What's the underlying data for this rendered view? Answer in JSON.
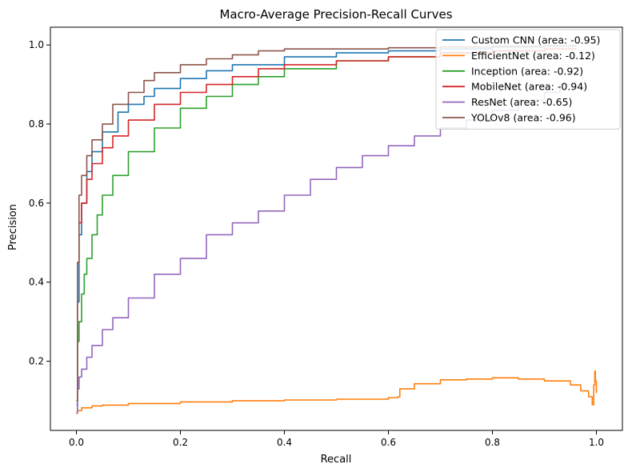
{
  "chart_data": {
    "type": "line",
    "title": "Macro-Average Precision-Recall Curves",
    "xlabel": "Recall",
    "ylabel": "Precision",
    "xlim": [
      -0.05,
      1.05
    ],
    "ylim": [
      0.025,
      1.045
    ],
    "xticks": [
      0.0,
      0.2,
      0.4,
      0.6,
      0.8,
      1.0
    ],
    "xtick_labels": [
      "0.0",
      "0.2",
      "0.4",
      "0.6",
      "0.8",
      "1.0"
    ],
    "yticks": [
      0.2,
      0.4,
      0.6,
      0.8,
      1.0
    ],
    "ytick_labels": [
      "0.2",
      "0.4",
      "0.6",
      "0.8",
      "1.0"
    ],
    "grid": false,
    "legend_position": "top-right",
    "series": [
      {
        "name": "Custom CNN (area: -0.95)",
        "color": "#1f77b4",
        "points": [
          [
            0.0,
            0.09
          ],
          [
            0.002,
            0.35
          ],
          [
            0.005,
            0.52
          ],
          [
            0.01,
            0.6
          ],
          [
            0.02,
            0.68
          ],
          [
            0.03,
            0.73
          ],
          [
            0.05,
            0.78
          ],
          [
            0.08,
            0.83
          ],
          [
            0.1,
            0.85
          ],
          [
            0.13,
            0.87
          ],
          [
            0.15,
            0.89
          ],
          [
            0.2,
            0.915
          ],
          [
            0.25,
            0.935
          ],
          [
            0.3,
            0.95
          ],
          [
            0.4,
            0.97
          ],
          [
            0.5,
            0.98
          ],
          [
            0.6,
            0.985
          ],
          [
            0.7,
            0.99
          ],
          [
            0.8,
            0.995
          ],
          [
            0.9,
            0.997
          ],
          [
            0.96,
            0.998
          ]
        ]
      },
      {
        "name": "EfficientNet (area: -0.12)",
        "color": "#ff7f0e",
        "points": [
          [
            0.0,
            0.068
          ],
          [
            0.002,
            0.075
          ],
          [
            0.01,
            0.082
          ],
          [
            0.03,
            0.087
          ],
          [
            0.05,
            0.089
          ],
          [
            0.1,
            0.093
          ],
          [
            0.2,
            0.097
          ],
          [
            0.3,
            0.1
          ],
          [
            0.4,
            0.102
          ],
          [
            0.5,
            0.104
          ],
          [
            0.6,
            0.108
          ],
          [
            0.618,
            0.11
          ],
          [
            0.622,
            0.13
          ],
          [
            0.65,
            0.143
          ],
          [
            0.7,
            0.153
          ],
          [
            0.75,
            0.155
          ],
          [
            0.8,
            0.158
          ],
          [
            0.85,
            0.155
          ],
          [
            0.9,
            0.15
          ],
          [
            0.95,
            0.14
          ],
          [
            0.97,
            0.125
          ],
          [
            0.985,
            0.11
          ],
          [
            0.992,
            0.09
          ],
          [
            0.995,
            0.14
          ],
          [
            0.997,
            0.175
          ],
          [
            0.998,
            0.15
          ],
          [
            1.0,
            0.12
          ]
        ]
      },
      {
        "name": "Inception (area: -0.92)",
        "color": "#2ca02c",
        "points": [
          [
            0.0,
            0.07
          ],
          [
            0.002,
            0.25
          ],
          [
            0.005,
            0.3
          ],
          [
            0.01,
            0.37
          ],
          [
            0.015,
            0.42
          ],
          [
            0.02,
            0.46
          ],
          [
            0.03,
            0.52
          ],
          [
            0.04,
            0.57
          ],
          [
            0.05,
            0.62
          ],
          [
            0.07,
            0.67
          ],
          [
            0.1,
            0.73
          ],
          [
            0.15,
            0.79
          ],
          [
            0.2,
            0.84
          ],
          [
            0.25,
            0.87
          ],
          [
            0.3,
            0.9
          ],
          [
            0.35,
            0.92
          ],
          [
            0.4,
            0.94
          ],
          [
            0.5,
            0.96
          ],
          [
            0.6,
            0.97
          ],
          [
            0.7,
            0.98
          ],
          [
            0.8,
            0.985
          ],
          [
            0.9,
            0.99
          ],
          [
            0.96,
            0.993
          ]
        ]
      },
      {
        "name": "MobileNet (area: -0.94)",
        "color": "#d62728",
        "points": [
          [
            0.0,
            0.1
          ],
          [
            0.002,
            0.45
          ],
          [
            0.005,
            0.55
          ],
          [
            0.01,
            0.6
          ],
          [
            0.02,
            0.66
          ],
          [
            0.03,
            0.7
          ],
          [
            0.05,
            0.74
          ],
          [
            0.07,
            0.77
          ],
          [
            0.1,
            0.81
          ],
          [
            0.15,
            0.85
          ],
          [
            0.2,
            0.88
          ],
          [
            0.25,
            0.9
          ],
          [
            0.3,
            0.92
          ],
          [
            0.35,
            0.94
          ],
          [
            0.4,
            0.95
          ],
          [
            0.5,
            0.96
          ],
          [
            0.6,
            0.97
          ],
          [
            0.7,
            0.98
          ],
          [
            0.8,
            0.985
          ],
          [
            0.9,
            0.99
          ],
          [
            0.96,
            0.992
          ]
        ]
      },
      {
        "name": "ResNet (area: -0.65)",
        "color": "#9467bd",
        "points": [
          [
            0.0,
            0.07
          ],
          [
            0.002,
            0.13
          ],
          [
            0.005,
            0.16
          ],
          [
            0.01,
            0.18
          ],
          [
            0.02,
            0.21
          ],
          [
            0.03,
            0.24
          ],
          [
            0.05,
            0.28
          ],
          [
            0.07,
            0.31
          ],
          [
            0.1,
            0.36
          ],
          [
            0.15,
            0.42
          ],
          [
            0.2,
            0.46
          ],
          [
            0.25,
            0.52
          ],
          [
            0.3,
            0.55
          ],
          [
            0.35,
            0.58
          ],
          [
            0.4,
            0.62
          ],
          [
            0.45,
            0.66
          ],
          [
            0.5,
            0.69
          ],
          [
            0.55,
            0.72
          ],
          [
            0.6,
            0.745
          ],
          [
            0.65,
            0.77
          ],
          [
            0.7,
            0.79
          ],
          [
            0.75,
            0.81
          ],
          [
            0.8,
            0.835
          ],
          [
            0.85,
            0.86
          ],
          [
            0.9,
            0.88
          ],
          [
            0.93,
            0.9
          ],
          [
            0.96,
            0.91
          ]
        ]
      },
      {
        "name": "YOLOv8 (area: -0.96)",
        "color": "#8c564b",
        "points": [
          [
            0.0,
            0.1
          ],
          [
            0.002,
            0.45
          ],
          [
            0.005,
            0.62
          ],
          [
            0.01,
            0.67
          ],
          [
            0.02,
            0.72
          ],
          [
            0.03,
            0.76
          ],
          [
            0.05,
            0.8
          ],
          [
            0.07,
            0.85
          ],
          [
            0.1,
            0.88
          ],
          [
            0.13,
            0.91
          ],
          [
            0.15,
            0.93
          ],
          [
            0.2,
            0.95
          ],
          [
            0.25,
            0.965
          ],
          [
            0.3,
            0.975
          ],
          [
            0.35,
            0.985
          ],
          [
            0.4,
            0.99
          ],
          [
            0.5,
            0.99
          ],
          [
            0.6,
            0.993
          ],
          [
            0.7,
            0.995
          ],
          [
            0.8,
            0.997
          ],
          [
            0.9,
            0.998
          ],
          [
            0.96,
            0.999
          ]
        ]
      }
    ]
  }
}
